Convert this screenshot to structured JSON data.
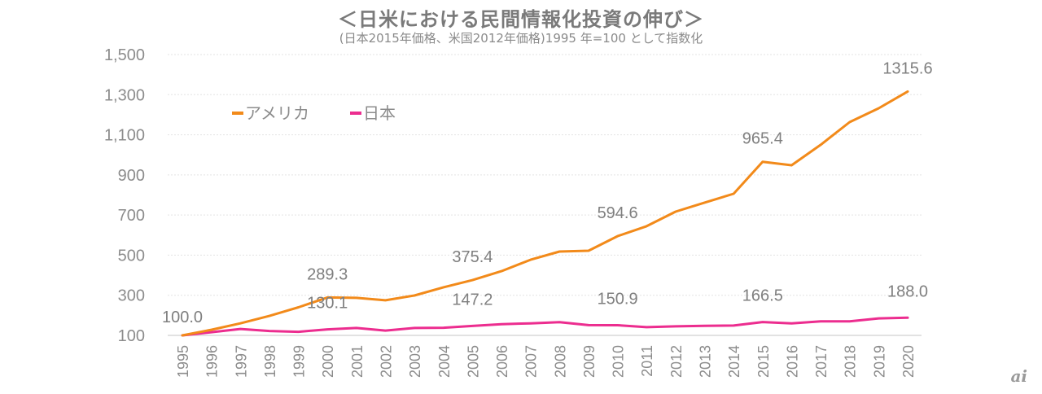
{
  "chart_data": {
    "type": "line",
    "title": "＜日米における民間情報化投資の伸び＞",
    "subtitle": "(日本2015年価格、米国2012年価格)1995 年=100 として指数化",
    "xlabel": "",
    "ylabel": "",
    "ylim": [
      100,
      1500
    ],
    "yticks": [
      100,
      300,
      500,
      700,
      900,
      1100,
      1300,
      1500
    ],
    "ytick_labels": [
      "100",
      "300",
      "500",
      "700",
      "900",
      "1,100",
      "1,300",
      "1,500"
    ],
    "grid": true,
    "legend_position": "top-left",
    "x": [
      "1995",
      "1996",
      "1997",
      "1998",
      "1999",
      "2000",
      "2001",
      "2002",
      "2003",
      "2004",
      "2005",
      "2006",
      "2007",
      "2008",
      "2009",
      "2010",
      "2011",
      "2012",
      "2013",
      "2014",
      "2015",
      "2016",
      "2017",
      "2018",
      "2019",
      "2020"
    ],
    "series": [
      {
        "name": "アメリカ",
        "color": "#f28a1a",
        "values": [
          100.0,
          128,
          160,
          197,
          240,
          289.3,
          287,
          275,
          299,
          340,
          375.4,
          420,
          477,
          518,
          522,
          594.6,
          644,
          717,
          762,
          806,
          965.4,
          948,
          1050,
          1163,
          1232,
          1315.6
        ],
        "labels": [
          {
            "year": "2000",
            "text": "289.3"
          },
          {
            "year": "2005",
            "text": "375.4"
          },
          {
            "year": "2010",
            "text": "594.6"
          },
          {
            "year": "2015",
            "text": "965.4"
          },
          {
            "year": "2020",
            "text": "1315.6"
          }
        ]
      },
      {
        "name": "日本",
        "color": "#ec2d8f",
        "values": [
          100.0,
          116,
          132,
          122,
          118,
          130.1,
          137,
          124,
          137,
          138,
          147.2,
          156,
          160,
          166,
          151,
          150.9,
          141,
          145,
          148,
          149,
          166.5,
          160,
          170,
          170,
          185,
          188.0
        ],
        "labels": [
          {
            "year": "1995",
            "text": "100.0"
          },
          {
            "year": "2000",
            "text": "130.1"
          },
          {
            "year": "2005",
            "text": "147.2"
          },
          {
            "year": "2010",
            "text": "150.9"
          },
          {
            "year": "2015",
            "text": "166.5"
          },
          {
            "year": "2020",
            "text": "188.0"
          }
        ]
      }
    ]
  },
  "logo": {
    "text": "ai"
  }
}
